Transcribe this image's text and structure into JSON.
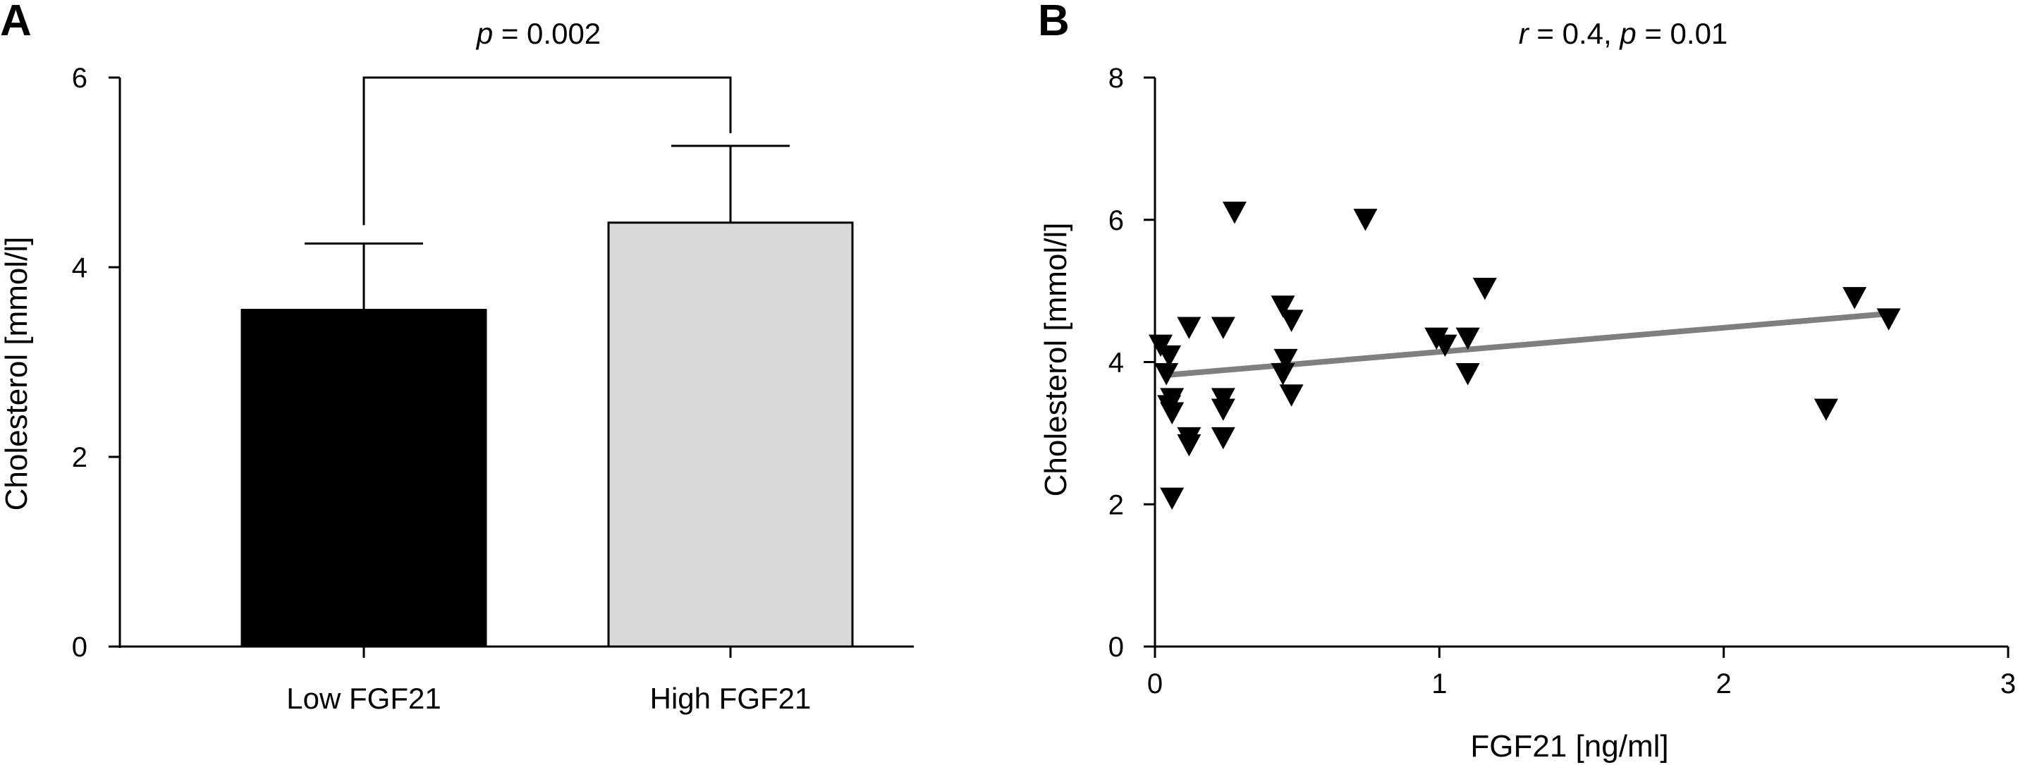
{
  "chart_data": [
    {
      "panel_label": "A",
      "type": "bar",
      "annotation": {
        "prefix": "p",
        "rest": " = 0.002"
      },
      "ylabel": "Cholesterol [mmol/l]",
      "xlabel": "",
      "ylim": [
        0,
        6
      ],
      "yticks": [
        0,
        2,
        4,
        6
      ],
      "categories": [
        "Low FGF21",
        "High FGF21"
      ],
      "values": [
        3.55,
        4.47
      ],
      "error_upper": [
        4.25,
        5.28
      ],
      "colors": [
        "#000000",
        "#d9d9d9"
      ]
    },
    {
      "panel_label": "B",
      "type": "scatter",
      "annotation": {
        "r_prefix": "r",
        "r_rest": " = 0.4, ",
        "p_prefix": "p",
        "p_rest": " = 0.01"
      },
      "xlabel": "FGF21 [ng/ml]",
      "ylabel": "Cholesterol [mmol/l]",
      "xlim": [
        0,
        3
      ],
      "ylim": [
        0,
        8
      ],
      "xticks": [
        0,
        1,
        2,
        3
      ],
      "yticks": [
        0,
        2,
        4,
        6,
        8
      ],
      "marker": "down-triangle",
      "points": [
        {
          "x": 0.02,
          "y": 4.25
        },
        {
          "x": 0.05,
          "y": 4.1
        },
        {
          "x": 0.04,
          "y": 3.85
        },
        {
          "x": 0.06,
          "y": 3.5
        },
        {
          "x": 0.05,
          "y": 3.4
        },
        {
          "x": 0.06,
          "y": 3.3
        },
        {
          "x": 0.06,
          "y": 2.1
        },
        {
          "x": 0.12,
          "y": 4.5
        },
        {
          "x": 0.12,
          "y": 2.95
        },
        {
          "x": 0.12,
          "y": 2.85
        },
        {
          "x": 0.24,
          "y": 4.5
        },
        {
          "x": 0.24,
          "y": 3.5
        },
        {
          "x": 0.24,
          "y": 3.35
        },
        {
          "x": 0.24,
          "y": 2.95
        },
        {
          "x": 0.28,
          "y": 6.12
        },
        {
          "x": 0.45,
          "y": 4.8
        },
        {
          "x": 0.48,
          "y": 4.6
        },
        {
          "x": 0.46,
          "y": 4.05
        },
        {
          "x": 0.45,
          "y": 3.85
        },
        {
          "x": 0.48,
          "y": 3.55
        },
        {
          "x": 0.74,
          "y": 6.02
        },
        {
          "x": 0.99,
          "y": 4.35
        },
        {
          "x": 1.02,
          "y": 4.25
        },
        {
          "x": 1.1,
          "y": 4.35
        },
        {
          "x": 1.1,
          "y": 3.85
        },
        {
          "x": 1.16,
          "y": 5.05
        },
        {
          "x": 2.36,
          "y": 3.35
        },
        {
          "x": 2.46,
          "y": 4.92
        },
        {
          "x": 2.58,
          "y": 4.62
        }
      ],
      "regression": {
        "x": [
          0.05,
          2.58
        ],
        "y": [
          3.82,
          4.68
        ],
        "color": "#7f7f7f"
      }
    }
  ]
}
